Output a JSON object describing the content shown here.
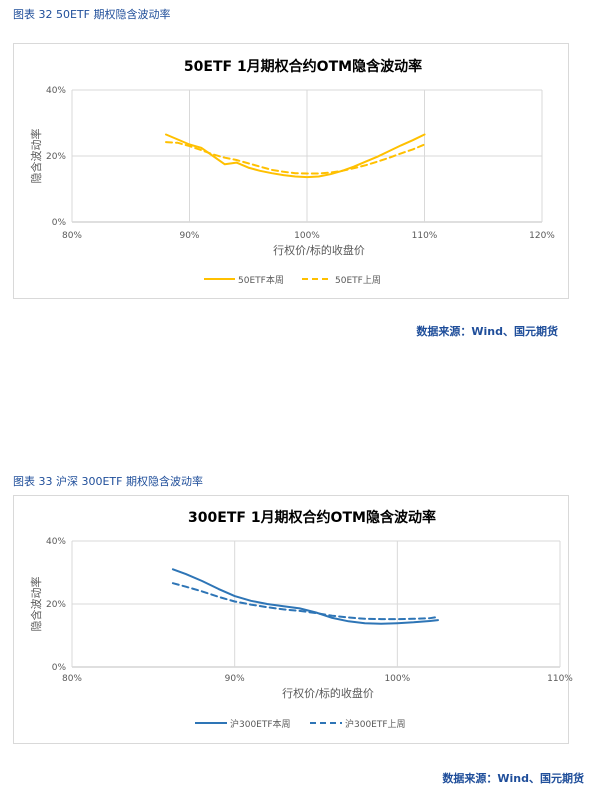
{
  "figures": [
    {
      "caption": "图表 32 50ETF 期权隐含波动率",
      "source": "数据来源：Wind、国元期货"
    },
    {
      "caption": "图表 33 沪深 300ETF 期权隐含波动率",
      "source": "数据来源：Wind、国元期货"
    }
  ],
  "chart_data": [
    {
      "type": "line",
      "title": "50ETF 1月期权合约OTM隐含波动率",
      "xlabel": "行权价/标的收盘价",
      "ylabel": "隐含波动率",
      "xlim": [
        80,
        120
      ],
      "ylim": [
        0,
        40
      ],
      "x_ticks": [
        "80%",
        "90%",
        "100%",
        "110%",
        "120%"
      ],
      "y_ticks": [
        "0%",
        "20%",
        "40%"
      ],
      "grid": true,
      "legend": "bottom",
      "series": [
        {
          "name": "50ETF本周",
          "style": "solid",
          "color": "#ffc000",
          "x": [
            88,
            89,
            90,
            91,
            92,
            93,
            94,
            95,
            96,
            97,
            98,
            99,
            100,
            101,
            102,
            103,
            104,
            105,
            106,
            107,
            108,
            109,
            110
          ],
          "y": [
            26.5,
            25,
            23.5,
            22.5,
            20,
            17.5,
            18,
            16.5,
            15.5,
            14.8,
            14.2,
            13.8,
            13.6,
            13.8,
            14.5,
            15.5,
            16.8,
            18.3,
            19.8,
            21.5,
            23.2,
            24.8,
            26.5
          ]
        },
        {
          "name": "50ETF上周",
          "style": "dashed",
          "color": "#ffc000",
          "x": [
            88,
            89,
            90,
            91,
            92,
            93,
            94,
            95,
            96,
            97,
            98,
            99,
            100,
            101,
            102,
            103,
            104,
            105,
            106,
            107,
            108,
            109,
            110
          ],
          "y": [
            24.2,
            24,
            23,
            21.8,
            20.5,
            19.5,
            18.8,
            17.8,
            16.8,
            15.8,
            15.2,
            14.8,
            14.7,
            14.7,
            15,
            15.5,
            16.3,
            17.2,
            18.3,
            19.5,
            20.8,
            22,
            23.5
          ]
        }
      ]
    },
    {
      "type": "line",
      "title": "300ETF 1月期权合约OTM隐含波动率",
      "xlabel": "行权价/标的收盘价",
      "ylabel": "隐含波动率",
      "xlim": [
        80,
        110
      ],
      "ylim": [
        0,
        40
      ],
      "x_ticks": [
        "80%",
        "90%",
        "100%",
        "110%"
      ],
      "y_ticks": [
        "0%",
        "20%",
        "40%"
      ],
      "grid": true,
      "legend": "bottom",
      "series": [
        {
          "name": "沪300ETF本周",
          "style": "solid",
          "color": "#2e75b6",
          "x": [
            86.2,
            87,
            88,
            89,
            90,
            91,
            92,
            93,
            94,
            95,
            96,
            97,
            98,
            99,
            100,
            101,
            102,
            102.5
          ],
          "y": [
            31,
            29.5,
            27.3,
            24.8,
            22.5,
            21,
            20,
            19.3,
            18.6,
            17.3,
            15.6,
            14.5,
            13.9,
            13.7,
            13.9,
            14.2,
            14.6,
            14.9
          ]
        },
        {
          "name": "沪300ETF上周",
          "style": "dashed",
          "color": "#2e75b6",
          "x": [
            86.2,
            87,
            88,
            89,
            90,
            91,
            92,
            93,
            94,
            95,
            96,
            97,
            98,
            99,
            100,
            101,
            102,
            102.5
          ],
          "y": [
            26.6,
            25.5,
            24,
            22.3,
            20.8,
            19.8,
            19,
            18.3,
            17.8,
            17.1,
            16.3,
            15.7,
            15.3,
            15.2,
            15.2,
            15.3,
            15.5,
            15.9
          ]
        }
      ]
    }
  ]
}
